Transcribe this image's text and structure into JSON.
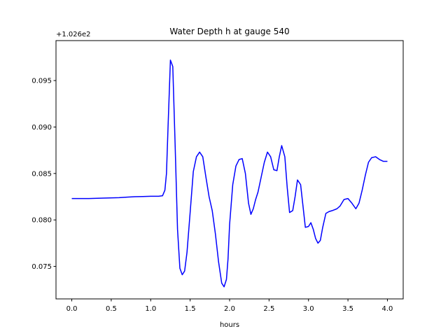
{
  "chart_data": {
    "type": "line",
    "title": "Water Depth h at gauge 540",
    "xlabel": "hours",
    "ylabel": "",
    "offset_label": "+1.026e2",
    "xlim": [
      -0.2,
      4.2
    ],
    "ylim": [
      0.0715,
      0.0993
    ],
    "x_ticks": [
      0.0,
      0.5,
      1.0,
      1.5,
      2.0,
      2.5,
      3.0,
      3.5,
      4.0
    ],
    "x_tick_labels": [
      "0.0",
      "0.5",
      "1.0",
      "1.5",
      "2.0",
      "2.5",
      "3.0",
      "3.5",
      "4.0"
    ],
    "y_ticks": [
      0.075,
      0.08,
      0.085,
      0.09,
      0.095
    ],
    "y_tick_labels": [
      "0.075",
      "0.080",
      "0.085",
      "0.090",
      "0.095"
    ],
    "grid": false,
    "legend": "none",
    "series": [
      {
        "color": "#0000ff",
        "x": [
          0.0,
          0.2,
          0.4,
          0.6,
          0.7,
          0.8,
          0.9,
          1.0,
          1.1,
          1.15,
          1.18,
          1.2,
          1.22,
          1.25,
          1.28,
          1.31,
          1.34,
          1.37,
          1.4,
          1.43,
          1.46,
          1.5,
          1.54,
          1.58,
          1.62,
          1.66,
          1.7,
          1.74,
          1.78,
          1.82,
          1.86,
          1.9,
          1.93,
          1.96,
          1.98,
          2.0,
          2.04,
          2.08,
          2.12,
          2.16,
          2.2,
          2.24,
          2.27,
          2.3,
          2.33,
          2.36,
          2.4,
          2.44,
          2.48,
          2.52,
          2.56,
          2.6,
          2.63,
          2.66,
          2.7,
          2.73,
          2.76,
          2.8,
          2.83,
          2.86,
          2.9,
          2.93,
          2.96,
          3.0,
          3.03,
          3.06,
          3.09,
          3.12,
          3.15,
          3.18,
          3.22,
          3.26,
          3.3,
          3.36,
          3.4,
          3.45,
          3.5,
          3.55,
          3.6,
          3.64,
          3.68,
          3.72,
          3.76,
          3.8,
          3.85,
          3.9,
          3.95,
          4.0
        ],
        "y": [
          0.0823,
          0.0823,
          0.08235,
          0.0824,
          0.08245,
          0.0825,
          0.08252,
          0.08255,
          0.08255,
          0.0826,
          0.0832,
          0.085,
          0.09,
          0.0972,
          0.0965,
          0.088,
          0.079,
          0.0748,
          0.0741,
          0.0745,
          0.0765,
          0.0808,
          0.0852,
          0.0868,
          0.0873,
          0.0868,
          0.0846,
          0.0825,
          0.081,
          0.0785,
          0.0755,
          0.0732,
          0.0728,
          0.0736,
          0.0758,
          0.0795,
          0.0838,
          0.0858,
          0.0865,
          0.0866,
          0.085,
          0.0818,
          0.0806,
          0.0812,
          0.0822,
          0.083,
          0.0846,
          0.0862,
          0.0873,
          0.0868,
          0.0854,
          0.0853,
          0.0868,
          0.088,
          0.0868,
          0.0835,
          0.0808,
          0.081,
          0.0825,
          0.0843,
          0.0838,
          0.0815,
          0.0792,
          0.0793,
          0.0797,
          0.079,
          0.078,
          0.0775,
          0.0778,
          0.0792,
          0.0807,
          0.0809,
          0.081,
          0.0812,
          0.0815,
          0.0822,
          0.0823,
          0.0818,
          0.0812,
          0.0818,
          0.0832,
          0.0848,
          0.0862,
          0.0867,
          0.0868,
          0.0865,
          0.0863,
          0.0863
        ]
      }
    ]
  }
}
